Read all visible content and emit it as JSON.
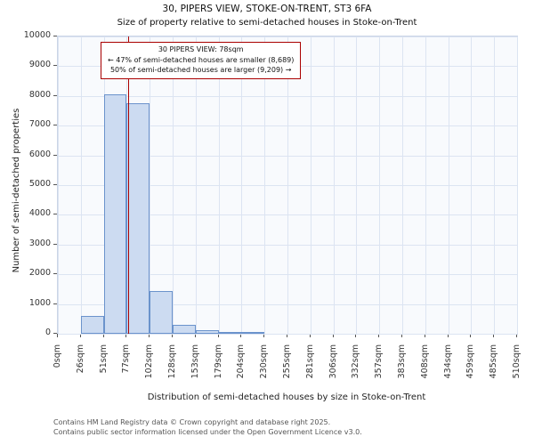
{
  "title": "30, PIPERS VIEW, STOKE-ON-TRENT, ST3 6FA",
  "subtitle": "Size of property relative to semi-detached houses in Stoke-on-Trent",
  "ylabel": "Number of semi-detached properties",
  "xlabel": "Distribution of semi-detached houses by size in Stoke-on-Trent",
  "annotation": {
    "line1": "30 PIPERS VIEW: 78sqm",
    "line2": "← 47% of semi-detached houses are smaller (8,689)",
    "line3": "50% of semi-detached houses are larger (9,209) →"
  },
  "footer": {
    "line1": "Contains HM Land Registry data © Crown copyright and database right 2025.",
    "line2": "Contains public sector information licensed under the Open Government Licence v3.0."
  },
  "chart_data": {
    "type": "bar",
    "title": "30, PIPERS VIEW, STOKE-ON-TRENT, ST3 6FA",
    "subtitle": "Size of property relative to semi-detached houses in Stoke-on-Trent",
    "xlabel": "Distribution of semi-detached houses by size in Stoke-on-Trent",
    "ylabel": "Number of semi-detached properties",
    "bin_labels": [
      "0sqm",
      "26sqm",
      "51sqm",
      "77sqm",
      "102sqm",
      "128sqm",
      "153sqm",
      "179sqm",
      "204sqm",
      "230sqm",
      "255sqm",
      "281sqm",
      "306sqm",
      "332sqm",
      "357sqm",
      "383sqm",
      "408sqm",
      "434sqm",
      "459sqm",
      "485sqm",
      "510sqm"
    ],
    "values": [
      0,
      600,
      8050,
      7750,
      1450,
      300,
      130,
      60,
      30,
      0,
      0,
      0,
      0,
      0,
      0,
      0,
      0,
      0,
      0,
      0
    ],
    "ylim": [
      0,
      10000
    ],
    "ytick_step": 1000,
    "x_range_sqm": [
      0,
      510
    ],
    "marker_value_sqm": 78,
    "grid": true,
    "colors": {
      "bar_fill": "#ccdbf1",
      "bar_edge": "#6b93cc",
      "marker_line": "#aa0000",
      "grid": "#dce4f2",
      "plot_bg": "#f8fafd"
    }
  }
}
